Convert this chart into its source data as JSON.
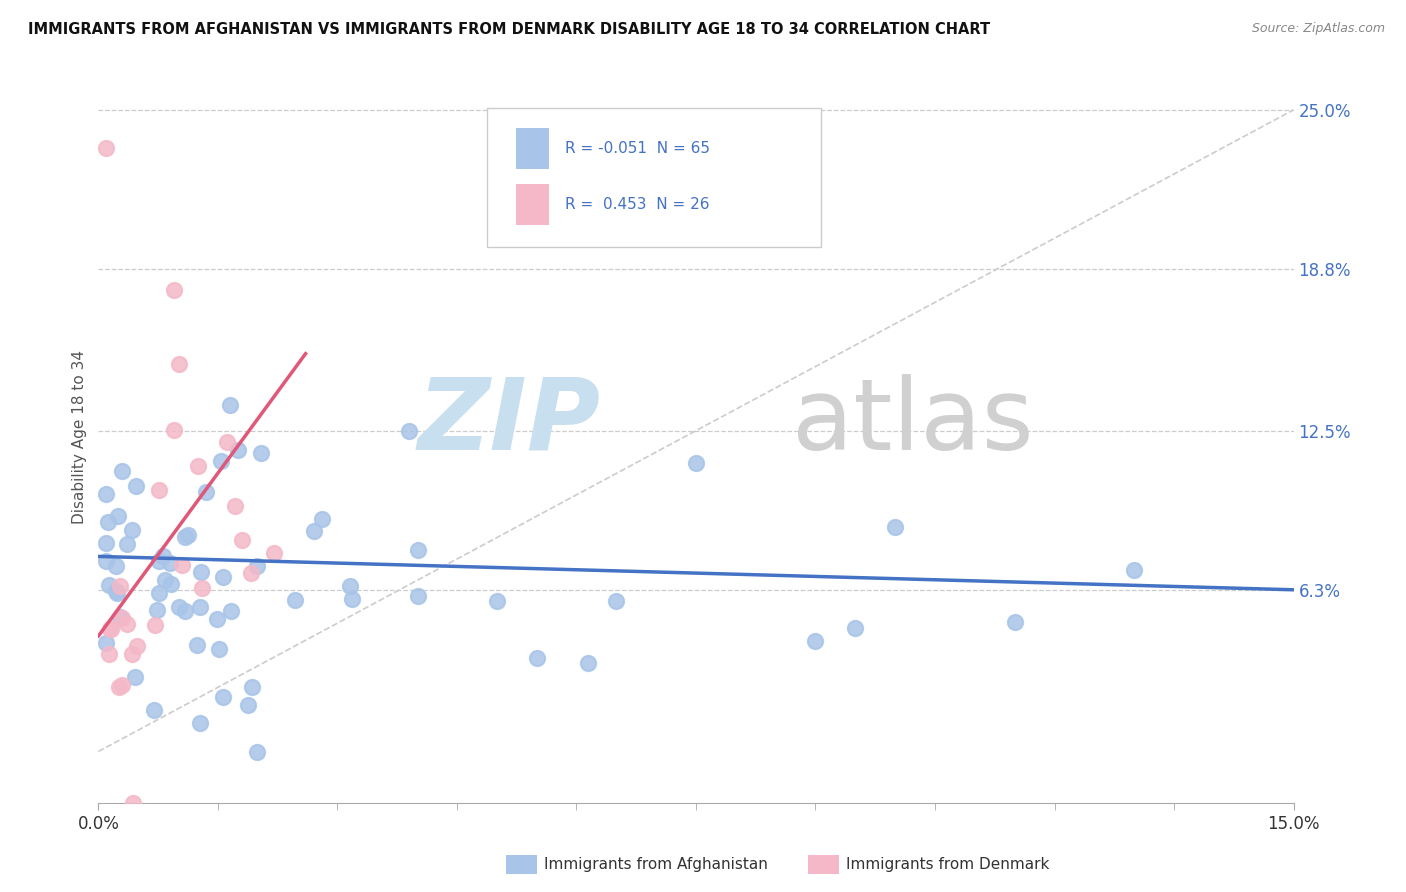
{
  "title": "IMMIGRANTS FROM AFGHANISTAN VS IMMIGRANTS FROM DENMARK DISABILITY AGE 18 TO 34 CORRELATION CHART",
  "source": "Source: ZipAtlas.com",
  "ylabel": "Disability Age 18 to 34",
  "x_min": 0.0,
  "x_max": 0.15,
  "y_min": -0.02,
  "y_max": 0.265,
  "x_ticks": [
    0.0,
    0.15
  ],
  "x_tick_labels": [
    "0.0%",
    "15.0%"
  ],
  "y_ticks_right": [
    0.063,
    0.125,
    0.188,
    0.25
  ],
  "y_tick_labels_right": [
    "6.3%",
    "12.5%",
    "18.8%",
    "25.0%"
  ],
  "color_afghanistan": "#a8c4e8",
  "color_denmark": "#f4b8c8",
  "line_color_afghanistan": "#4472c4",
  "line_color_denmark": "#e05878",
  "watermark_zip_color": "#c8dff0",
  "watermark_atlas_color": "#d0d0d0",
  "legend_text_color": "#4472c4",
  "legend_R_color": "#e05878",
  "afg_line_x": [
    0.0,
    0.15
  ],
  "afg_line_y": [
    0.076,
    0.063
  ],
  "den_line_x": [
    0.0,
    0.026
  ],
  "den_line_y": [
    0.045,
    0.155
  ],
  "ref_line_x": [
    0.0,
    0.15
  ],
  "ref_line_y": [
    0.0,
    0.25
  ]
}
